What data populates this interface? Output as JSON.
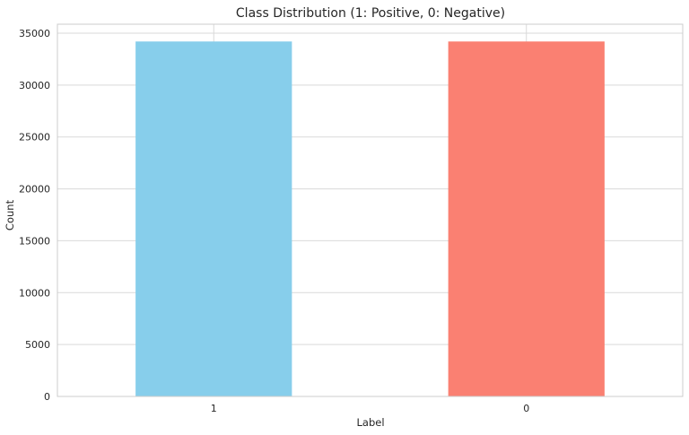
{
  "chart_data": {
    "type": "bar",
    "title": "Class Distribution (1: Positive, 0: Negative)",
    "xlabel": "Label",
    "ylabel": "Count",
    "categories": [
      "1",
      "0"
    ],
    "values": [
      34200,
      34200
    ],
    "colors": [
      "#87CEEB",
      "#FA8072"
    ],
    "ylim": [
      0,
      35000
    ],
    "yticks": [
      0,
      5000,
      10000,
      15000,
      20000,
      25000,
      30000,
      35000
    ],
    "grid": true,
    "legend": "none"
  },
  "style": {
    "grid_color": "#d9d9d9",
    "spine_color": "#cccccc",
    "background": "#ffffff"
  }
}
